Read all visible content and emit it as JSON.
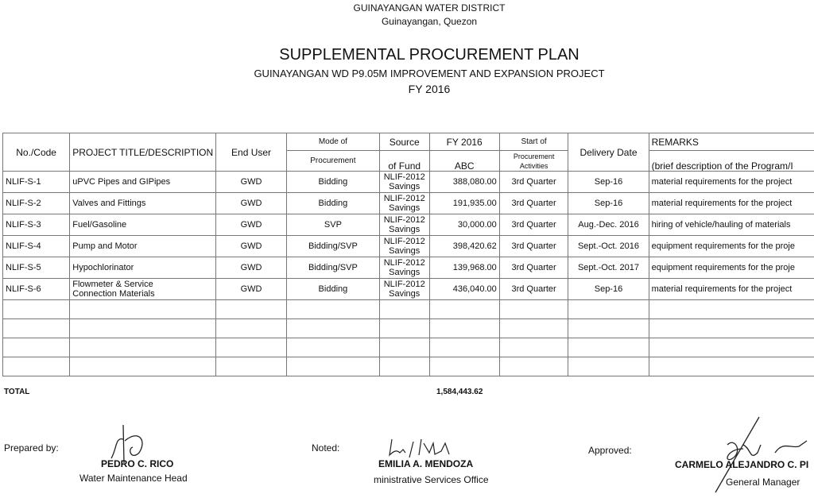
{
  "header": {
    "organization": "GUINAYANGAN WATER DISTRICT",
    "location": "Guinayangan, Quezon",
    "title": "SUPPLEMENTAL PROCUREMENT PLAN",
    "subtitle": "GUINAYANGAN WD P9.05M IMPROVEMENT AND EXPANSION PROJECT",
    "fiscal_year": "FY 2016"
  },
  "table": {
    "headers": {
      "code": "No./Code",
      "title": "PROJECT TITLE/DESCRIPTION",
      "end_user": "End User",
      "mode_1": "Mode of",
      "mode_2": "Procurement",
      "source_1": "Source",
      "source_2": "of Fund",
      "fy_1": "FY 2016",
      "fy_2": "ABC",
      "start_1": "Start of",
      "start_2": "Procurement",
      "start_3": "Activities",
      "delivery": "Delivery Date",
      "remarks_1": "REMARKS",
      "remarks_2": "(brief description of the Program/I"
    },
    "rows": [
      {
        "code": "NLIF-S-1",
        "title": "uPVC Pipes and GIPipes",
        "title2": "",
        "end_user": "GWD",
        "mode": "Bidding",
        "source1": "NLIF-2012",
        "source2": "Savings",
        "abc": "388,080.00",
        "start": "3rd Quarter",
        "delivery": "Sep-16",
        "remarks": "material requirements for the project"
      },
      {
        "code": "NLIF-S-2",
        "title": "Valves and Fittings",
        "title2": "",
        "end_user": "GWD",
        "mode": "Bidding",
        "source1": "NLIF-2012",
        "source2": "Savings",
        "abc": "191,935.00",
        "start": "3rd Quarter",
        "delivery": "Sep-16",
        "remarks": "material requirements for the project"
      },
      {
        "code": "NLIF-S-3",
        "title": "Fuel/Gasoline",
        "title2": "",
        "end_user": "GWD",
        "mode": "SVP",
        "source1": "NLIF-2012",
        "source2": "Savings",
        "abc": "30,000.00",
        "start": "3rd Quarter",
        "delivery": "Aug.-Dec. 2016",
        "remarks": "hiring of vehicle/hauling of materials"
      },
      {
        "code": "NLIF-S-4",
        "title": "Pump and Motor",
        "title2": "",
        "end_user": "GWD",
        "mode": "Bidding/SVP",
        "source1": "NLIF-2012",
        "source2": "Savings",
        "abc": "398,420.62",
        "start": "3rd Quarter",
        "delivery": "Sept.-Oct. 2016",
        "remarks": "equipment requirements for the proje"
      },
      {
        "code": "NLIF-S-5",
        "title": "Hypochlorinator",
        "title2": "",
        "end_user": "GWD",
        "mode": "Bidding/SVP",
        "source1": "NLIF-2012",
        "source2": "Savings",
        "abc": "139,968.00",
        "start": "3rd Quarter",
        "delivery": "Sept.-Oct. 2017",
        "remarks": "equipment requirements for the proje"
      },
      {
        "code": "NLIF-S-6",
        "title": "Flowmeter & Service",
        "title2": "Connection Materials",
        "end_user": "GWD",
        "mode": "Bidding",
        "source1": "NLIF-2012",
        "source2": "Savings",
        "abc": "436,040.00",
        "start": "3rd Quarter",
        "delivery": "Sep-16",
        "remarks": "material requirements for the project"
      }
    ],
    "total_label": "TOTAL",
    "total_value": "1,584,443.62"
  },
  "signatories": {
    "prepared_label": "Prepared by:",
    "prepared_name": "PEDRO C. RICO",
    "prepared_title": "Water Maintenance Head",
    "noted_label": "Noted:",
    "noted_name": "EMILIA A. MENDOZA",
    "noted_title": "ministrative Services Office",
    "approved_label": "Approved:",
    "approved_name": "CARMELO ALEJANDRO C. PI",
    "approved_title": "General Manager"
  }
}
